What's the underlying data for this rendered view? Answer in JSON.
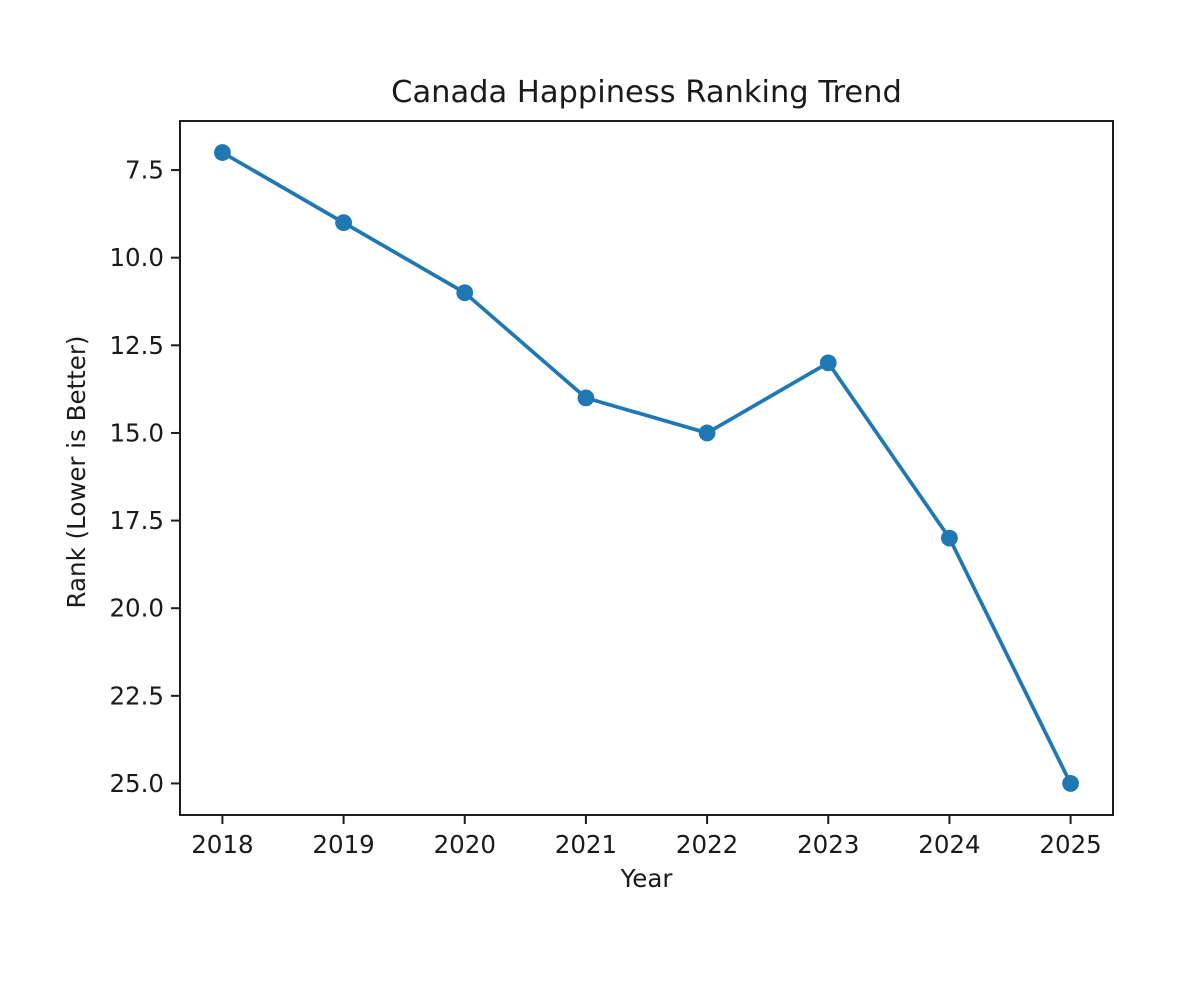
{
  "chart_data": {
    "type": "line",
    "title": "Canada Happiness Ranking Trend",
    "xlabel": "Year",
    "ylabel": "Rank (Lower is Better)",
    "x": [
      2018,
      2019,
      2020,
      2021,
      2022,
      2023,
      2024,
      2025
    ],
    "y": [
      7,
      9,
      11,
      14,
      15,
      13,
      18,
      25
    ],
    "x_ticks": [
      2018,
      2019,
      2020,
      2021,
      2022,
      2023,
      2024,
      2025
    ],
    "x_tick_labels": [
      "2018",
      "2019",
      "2020",
      "2021",
      "2022",
      "2023",
      "2024",
      "2025"
    ],
    "y_ticks": [
      7.5,
      10.0,
      12.5,
      15.0,
      17.5,
      20.0,
      22.5,
      25.0
    ],
    "y_tick_labels": [
      "7.5",
      "10.0",
      "12.5",
      "15.0",
      "17.5",
      "20.0",
      "22.5",
      "25.0"
    ],
    "xlim": [
      2017.65,
      2025.35
    ],
    "ylim": [
      25.9,
      6.1
    ],
    "y_axis_inverted": true,
    "grid": false,
    "legend": false,
    "line_color": "#1f77b4",
    "marker": "circle"
  }
}
